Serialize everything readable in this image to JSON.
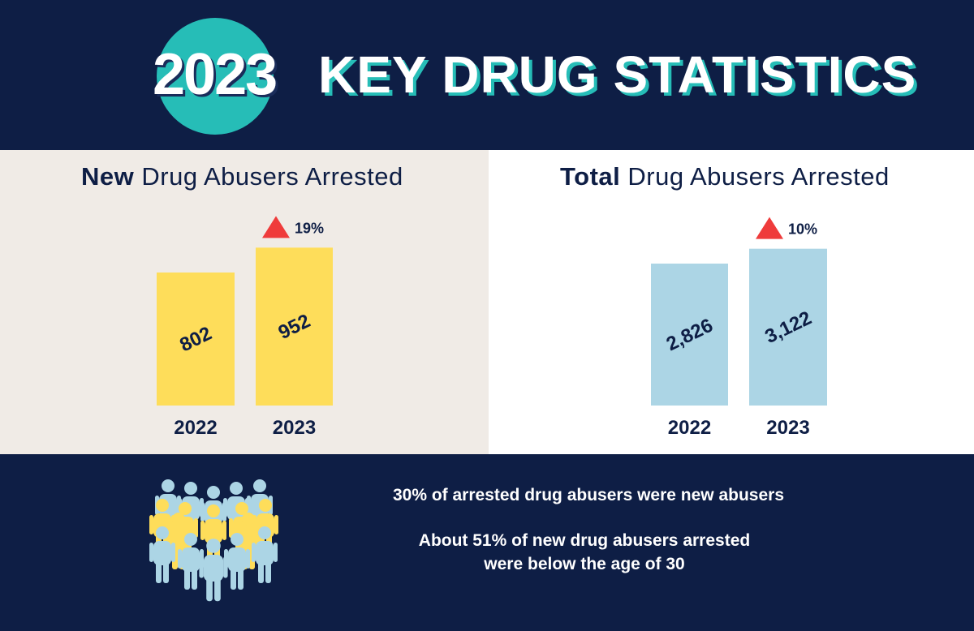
{
  "header": {
    "year": "2023",
    "title": "KEY DRUG STATISTICS"
  },
  "chart_data": [
    {
      "type": "bar",
      "title_bold": "New",
      "title_rest": "Drug Abusers Arrested",
      "categories": [
        "2022",
        "2023"
      ],
      "values": [
        802,
        952
      ],
      "value_labels": [
        "802",
        "952"
      ],
      "change_label": "19%",
      "change_direction": "up",
      "bar_color": "#fedd5a"
    },
    {
      "type": "bar",
      "title_bold": "Total",
      "title_rest": "Drug Abusers Arrested",
      "categories": [
        "2022",
        "2023"
      ],
      "values": [
        2826,
        3122
      ],
      "value_labels": [
        "2,826",
        "3,122"
      ],
      "change_label": "10%",
      "change_direction": "up",
      "bar_color": "#acd5e5"
    }
  ],
  "footer": {
    "stat1": "30% of arrested drug abusers were new abusers",
    "stat2_line1": "About 51% of new drug abusers arrested",
    "stat2_line2": "were below the age of 30"
  },
  "colors": {
    "navy": "#0e1e45",
    "teal": "#26bdb7",
    "yellow": "#fedd5a",
    "light_blue": "#acd5e5",
    "arrow_red": "#ef3b3b"
  }
}
